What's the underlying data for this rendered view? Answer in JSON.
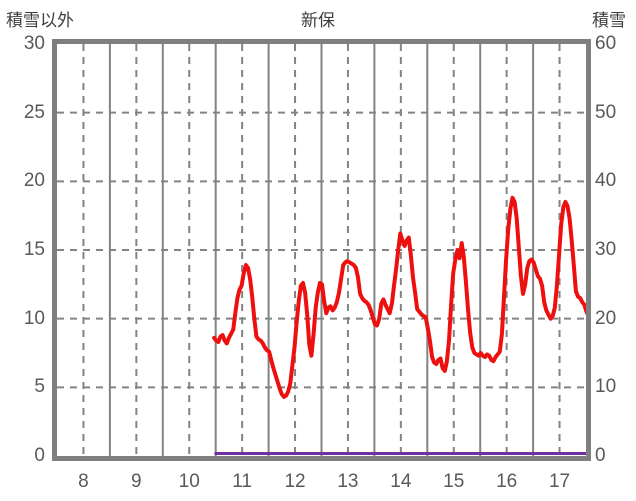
{
  "chart": {
    "left_axis_title": "積雪以外",
    "title": "新保",
    "right_axis_title": "積雪"
  },
  "chart_data": {
    "type": "line",
    "title": "新保",
    "grid": {
      "color": "#838383",
      "border_color": "#7f7f7f",
      "horizontal_dashed": true
    },
    "x_axis": {
      "range": [
        7.5,
        17.5
      ],
      "tick_labels": [
        "8",
        "9",
        "10",
        "11",
        "12",
        "13",
        "14",
        "15",
        "16",
        "17"
      ],
      "tick_hours": [
        8,
        9,
        10,
        11,
        12,
        13,
        14,
        15,
        16,
        17
      ],
      "solid_gridline_hours": [
        8.5,
        9.5,
        10.5,
        11.5,
        12.5,
        13.5,
        14.5,
        15.5,
        16.5
      ]
    },
    "left_y_axis": {
      "title": "積雪以外",
      "range": [
        0,
        30
      ],
      "ticks": [
        0,
        5,
        10,
        15,
        20,
        25,
        30
      ]
    },
    "right_y_axis": {
      "title": "積雪",
      "range": [
        0,
        60
      ],
      "ticks": [
        0,
        10,
        20,
        30,
        40,
        50,
        60
      ]
    },
    "series": [
      {
        "name": "積雪以外",
        "axis": "left",
        "color": "#ee0f0f",
        "stroke_width": 4,
        "x": [
          10.47,
          10.51,
          10.55,
          10.59,
          10.63,
          10.67,
          10.71,
          10.75,
          10.79,
          10.83,
          10.87,
          10.91,
          10.95,
          10.99,
          11.03,
          11.07,
          11.11,
          11.15,
          11.19,
          11.23,
          11.27,
          11.31,
          11.35,
          11.39,
          11.43,
          11.47,
          11.51,
          11.55,
          11.59,
          11.63,
          11.67,
          11.71,
          11.75,
          11.79,
          11.83,
          11.87,
          11.91,
          11.95,
          11.99,
          12.03,
          12.07,
          12.11,
          12.15,
          12.19,
          12.23,
          12.27,
          12.31,
          12.35,
          12.39,
          12.43,
          12.47,
          12.51,
          12.55,
          12.59,
          12.63,
          12.67,
          12.71,
          12.75,
          12.79,
          12.83,
          12.87,
          12.91,
          12.95,
          12.99,
          13.03,
          13.07,
          13.11,
          13.15,
          13.19,
          13.23,
          13.27,
          13.31,
          13.35,
          13.39,
          13.43,
          13.47,
          13.51,
          13.55,
          13.59,
          13.63,
          13.67,
          13.71,
          13.75,
          13.79,
          13.83,
          13.87,
          13.91,
          13.95,
          13.99,
          14.03,
          14.07,
          14.11,
          14.15,
          14.19,
          14.23,
          14.27,
          14.31,
          14.35,
          14.39,
          14.43,
          14.47,
          14.51,
          14.55,
          14.59,
          14.63,
          14.67,
          14.71,
          14.75,
          14.79,
          14.83,
          14.87,
          14.91,
          14.95,
          14.99,
          15.03,
          15.07,
          15.11,
          15.15,
          15.19,
          15.23,
          15.27,
          15.31,
          15.35,
          15.39,
          15.43,
          15.47,
          15.51,
          15.55,
          15.59,
          15.63,
          15.67,
          15.71,
          15.75,
          15.79,
          15.83,
          15.87,
          15.91,
          15.95,
          15.99,
          16.03,
          16.07,
          16.11,
          16.15,
          16.19,
          16.23,
          16.27,
          16.31,
          16.35,
          16.39,
          16.43,
          16.47,
          16.51,
          16.55,
          16.59,
          16.63,
          16.67,
          16.71,
          16.75,
          16.79,
          16.83,
          16.87,
          16.91,
          16.95,
          16.99,
          17.03,
          17.07,
          17.11,
          17.15,
          17.19,
          17.23,
          17.27,
          17.31,
          17.35,
          17.39,
          17.43,
          17.47,
          17.51,
          17.55
        ],
        "values": [
          8.6,
          8.4,
          8.3,
          8.7,
          8.8,
          8.4,
          8.2,
          8.6,
          8.9,
          9.2,
          10.4,
          11.5,
          12.1,
          12.4,
          13.3,
          13.9,
          13.7,
          12.9,
          11.6,
          10.0,
          8.7,
          8.5,
          8.4,
          8.2,
          7.9,
          7.7,
          7.6,
          7.0,
          6.4,
          5.9,
          5.4,
          4.9,
          4.5,
          4.3,
          4.4,
          4.7,
          5.3,
          6.6,
          7.9,
          9.7,
          11.3,
          12.4,
          12.6,
          11.9,
          10.3,
          8.1,
          7.3,
          8.9,
          10.8,
          11.9,
          12.6,
          12.5,
          11.3,
          10.4,
          10.8,
          10.9,
          10.6,
          10.8,
          11.2,
          11.9,
          12.9,
          13.9,
          14.1,
          14.2,
          14.1,
          14.0,
          13.9,
          13.7,
          13.0,
          11.8,
          11.5,
          11.3,
          11.2,
          11.0,
          10.6,
          10.1,
          9.6,
          9.5,
          10.0,
          11.1,
          11.4,
          11.0,
          10.7,
          10.4,
          11.1,
          12.4,
          13.6,
          15.0,
          16.2,
          15.7,
          15.3,
          15.7,
          15.9,
          14.6,
          13.0,
          11.9,
          10.7,
          10.5,
          10.3,
          10.2,
          10.1,
          9.3,
          8.4,
          7.2,
          6.8,
          6.7,
          7.0,
          7.1,
          6.4,
          6.2,
          6.9,
          8.4,
          11.0,
          13.3,
          14.3,
          15.0,
          14.4,
          15.5,
          14.5,
          12.7,
          10.7,
          9.0,
          7.9,
          7.5,
          7.4,
          7.3,
          7.5,
          7.3,
          7.2,
          7.4,
          7.3,
          7.0,
          6.9,
          7.2,
          7.4,
          7.6,
          8.9,
          11.6,
          14.3,
          16.5,
          18.0,
          18.8,
          18.5,
          17.3,
          15.2,
          13.1,
          11.8,
          12.5,
          13.7,
          14.2,
          14.3,
          14.1,
          13.6,
          13.1,
          12.9,
          12.4,
          11.2,
          10.6,
          10.3,
          10.0,
          10.2,
          10.8,
          12.4,
          14.6,
          16.8,
          18.1,
          18.5,
          18.2,
          17.3,
          15.7,
          13.9,
          12.0,
          11.6,
          11.5,
          11.2,
          11.0,
          10.5,
          10.2
        ]
      },
      {
        "name": "積雪",
        "axis": "right",
        "color": "#7030a0",
        "stroke_width": 3,
        "x": [
          10.5,
          17.5
        ],
        "values": [
          0,
          0
        ]
      }
    ]
  }
}
